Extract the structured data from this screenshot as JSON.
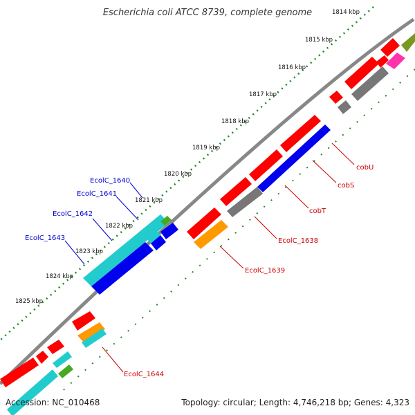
{
  "title": "Escherichia coli ATCC 8739, complete genome",
  "ticks": [
    "1814 kbp",
    "1815 kbp",
    "1816 kbp",
    "1817 kbp",
    "1818 kbp",
    "1819 kbp",
    "1820 kbp",
    "1821 kbp",
    "1822 kbp",
    "1823 kbp",
    "1824 kbp",
    "1825 kbp"
  ],
  "genes": {
    "cobU": "cobU",
    "cobS": "cobS",
    "cobT": "cobT",
    "EcolC_1638": "EcolC_1638",
    "EcolC_1639": "EcolC_1639",
    "EcolC_1640": "EcolC_1640",
    "EcolC_1641": "EcolC_1641",
    "EcolC_1642": "EcolC_1642",
    "EcolC_1643": "EcolC_1643",
    "EcolC_1644": "EcolC_1644"
  },
  "footer": {
    "accession": "Accession: NC_010468",
    "topology": "Topology: circular; Length: 4,746,218 bp; Genes: 4,323"
  },
  "colors": {
    "red": "#ff0000",
    "blue": "#0000ee",
    "cyan": "#22cccc",
    "gray": "#777777",
    "green": "#44aa22",
    "orange": "#ff9900",
    "pink": "#ff33aa",
    "olive": "#779922",
    "tick": "#228822",
    "axis": "#888888"
  }
}
